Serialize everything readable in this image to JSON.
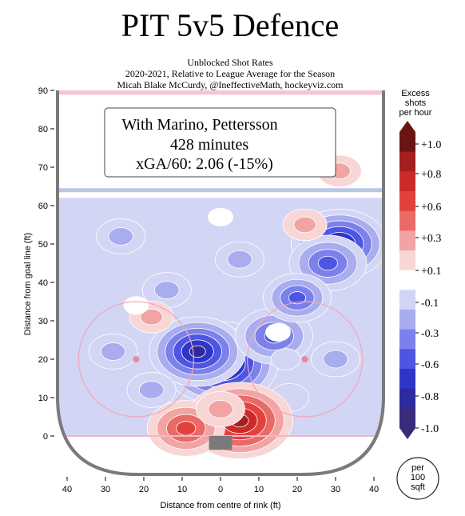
{
  "title": "PIT 5v5 Defence",
  "subtitle_lines": [
    "Unblocked Shot Rates",
    "2020-2021, Relative to League Average for the Season",
    "Micah Blake McCurdy, @IneffectiveMath, hockeyviz.com"
  ],
  "annotation": {
    "line1": "With Marino, Pettersson",
    "line2": "428 minutes",
    "line3": "xGA/60: 2.06 (-15%)"
  },
  "colorbar": {
    "title_lines": [
      "Excess",
      "shots",
      "per hour"
    ],
    "tick_labels": [
      "+1.0",
      "+0.8",
      "+0.6",
      "+0.3",
      "+0.1",
      "-0.1",
      "-0.3",
      "-0.6",
      "-0.8",
      "-1.0"
    ],
    "colors": [
      "#6b1414",
      "#a3201f",
      "#cc2a2a",
      "#e2413d",
      "#ea6a66",
      "#f2a3a3",
      "#f8d6d6",
      "#ffffff",
      "#d2d5f4",
      "#a9acef",
      "#7b80ea",
      "#4e55e2",
      "#2e36c9",
      "#2d2a9e",
      "#3a2a7a"
    ],
    "unit_lines": [
      "per",
      "100",
      "sqft"
    ]
  },
  "chart_data": {
    "type": "heatmap",
    "title": "PIT 5v5 Defence",
    "xlabel": "Distance from centre of rink (ft)",
    "ylabel": "Distance from goal line (ft)",
    "xlim": [
      -42.5,
      42.5
    ],
    "ylim": [
      -10,
      90
    ],
    "x_ticks": [
      -40,
      -30,
      -20,
      -10,
      0,
      10,
      20,
      30,
      40
    ],
    "x_tick_labels": [
      "40",
      "30",
      "20",
      "10",
      "0",
      "10",
      "20",
      "30",
      "40"
    ],
    "y_ticks": [
      0,
      10,
      20,
      30,
      40,
      50,
      60,
      70,
      80,
      90
    ],
    "y_tick_labels": [
      "0",
      "10",
      "20",
      "30",
      "40",
      "50",
      "60",
      "70",
      "80",
      "90"
    ],
    "value_range": [
      -1.0,
      1.0
    ],
    "hotspots": [
      {
        "x": 0,
        "y": 19,
        "value": -1.0
      },
      {
        "x": -6,
        "y": 22,
        "value": -0.8
      },
      {
        "x": 14,
        "y": 26,
        "value": -0.6
      },
      {
        "x": 31,
        "y": 50,
        "value": -0.8
      },
      {
        "x": 28,
        "y": 45,
        "value": -0.6
      },
      {
        "x": 20,
        "y": 36,
        "value": -0.5
      },
      {
        "x": -26,
        "y": 52,
        "value": -0.3
      },
      {
        "x": -14,
        "y": 38,
        "value": -0.3
      },
      {
        "x": 5,
        "y": 46,
        "value": -0.3
      },
      {
        "x": -28,
        "y": 22,
        "value": -0.3
      },
      {
        "x": -18,
        "y": 12,
        "value": -0.3
      },
      {
        "x": 30,
        "y": 20,
        "value": -0.3
      },
      {
        "x": 18,
        "y": 10,
        "value": -0.2
      },
      {
        "x": 5,
        "y": 4,
        "value": 0.9
      },
      {
        "x": -9,
        "y": 2,
        "value": 0.6
      },
      {
        "x": 0,
        "y": 7,
        "value": 0.3
      },
      {
        "x": 22,
        "y": 55,
        "value": 0.25
      },
      {
        "x": -18,
        "y": 31,
        "value": 0.25
      },
      {
        "x": 31,
        "y": 69,
        "value": 0.25
      },
      {
        "x": 15,
        "y": 27,
        "value": 0.05
      },
      {
        "x": 17,
        "y": 20,
        "value": -0.1
      },
      {
        "x": -22,
        "y": 34,
        "value": -0.05
      },
      {
        "x": 0,
        "y": 57,
        "value": -0.05
      }
    ]
  }
}
